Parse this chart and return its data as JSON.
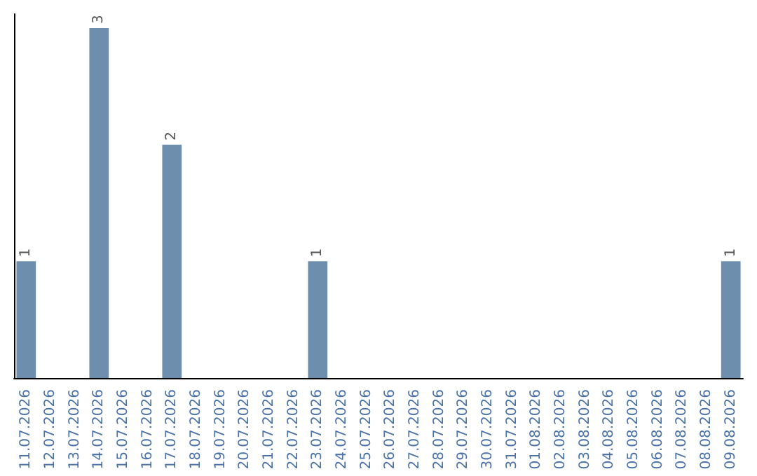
{
  "chart_data": {
    "type": "bar",
    "categories": [
      "11.07.2026",
      "12.07.2026",
      "13.07.2026",
      "14.07.2026",
      "15.07.2026",
      "16.07.2026",
      "17.07.2026",
      "18.07.2026",
      "19.07.2026",
      "20.07.2026",
      "21.07.2026",
      "22.07.2026",
      "23.07.2026",
      "24.07.2026",
      "25.07.2026",
      "26.07.2026",
      "27.07.2026",
      "28.07.2026",
      "29.07.2026",
      "30.07.2026",
      "31.07.2026",
      "01.08.2026",
      "02.08.2026",
      "03.08.2026",
      "04.08.2026",
      "05.08.2026",
      "06.08.2026",
      "07.08.2026",
      "08.08.2026",
      "09.08.2026"
    ],
    "values": [
      1,
      0,
      0,
      3,
      0,
      0,
      2,
      0,
      0,
      0,
      0,
      0,
      1,
      0,
      0,
      0,
      0,
      0,
      0,
      0,
      0,
      0,
      0,
      0,
      0,
      0,
      0,
      0,
      0,
      1
    ],
    "value_labels": [
      "1",
      null,
      null,
      "3",
      null,
      null,
      "2",
      null,
      null,
      null,
      null,
      null,
      "1",
      null,
      null,
      null,
      null,
      null,
      null,
      null,
      null,
      null,
      null,
      null,
      null,
      null,
      null,
      null,
      null,
      "1"
    ],
    "color": "#6d8fad",
    "ylim": [
      0,
      3.12
    ],
    "tick_labels": "x"
  }
}
